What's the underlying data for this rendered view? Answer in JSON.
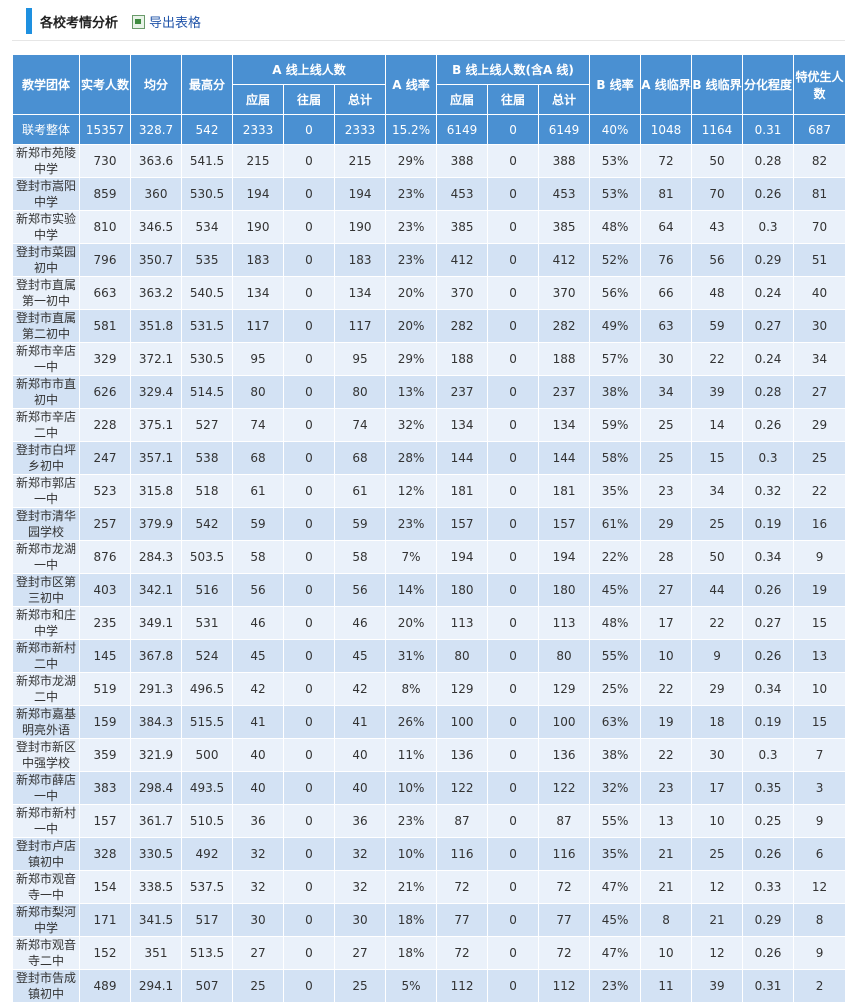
{
  "header": {
    "title": "各校考情分析",
    "export_label": "导出表格"
  },
  "table": {
    "head": {
      "group": "教学团体",
      "sat": "实考人数",
      "avg": "均分",
      "max": "最高分",
      "a_line": "A 线上线人数",
      "a_rate": "A 线率",
      "b_line": "B 线上线人数(含A 线)",
      "b_rate": "B 线率",
      "a_crit": "A 线临界",
      "b_crit": "B 线临界",
      "diff": "分化程度",
      "top": "特优生人数",
      "sub_current": "应届",
      "sub_past": "往届",
      "sub_total": "总计"
    },
    "total_row": [
      "联考整体",
      "15357",
      "328.7",
      "542",
      "2333",
      "0",
      "2333",
      "15.2%",
      "6149",
      "0",
      "6149",
      "40%",
      "1048",
      "1164",
      "0.31",
      "687"
    ],
    "rows": [
      [
        "新郑市苑陵中学",
        "730",
        "363.6",
        "541.5",
        "215",
        "0",
        "215",
        "29%",
        "388",
        "0",
        "388",
        "53%",
        "72",
        "50",
        "0.28",
        "82"
      ],
      [
        "登封市嵩阳中学",
        "859",
        "360",
        "530.5",
        "194",
        "0",
        "194",
        "23%",
        "453",
        "0",
        "453",
        "53%",
        "81",
        "70",
        "0.26",
        "81"
      ],
      [
        "新郑市实验中学",
        "810",
        "346.5",
        "534",
        "190",
        "0",
        "190",
        "23%",
        "385",
        "0",
        "385",
        "48%",
        "64",
        "43",
        "0.3",
        "70"
      ],
      [
        "登封市菜园初中",
        "796",
        "350.7",
        "535",
        "183",
        "0",
        "183",
        "23%",
        "412",
        "0",
        "412",
        "52%",
        "76",
        "56",
        "0.29",
        "51"
      ],
      [
        "登封市直属第一初中",
        "663",
        "363.2",
        "540.5",
        "134",
        "0",
        "134",
        "20%",
        "370",
        "0",
        "370",
        "56%",
        "66",
        "48",
        "0.24",
        "40"
      ],
      [
        "登封市直属第二初中",
        "581",
        "351.8",
        "531.5",
        "117",
        "0",
        "117",
        "20%",
        "282",
        "0",
        "282",
        "49%",
        "63",
        "59",
        "0.27",
        "30"
      ],
      [
        "新郑市辛店一中",
        "329",
        "372.1",
        "530.5",
        "95",
        "0",
        "95",
        "29%",
        "188",
        "0",
        "188",
        "57%",
        "30",
        "22",
        "0.24",
        "34"
      ],
      [
        "新郑市市直初中",
        "626",
        "329.4",
        "514.5",
        "80",
        "0",
        "80",
        "13%",
        "237",
        "0",
        "237",
        "38%",
        "34",
        "39",
        "0.28",
        "27"
      ],
      [
        "新郑市辛店二中",
        "228",
        "375.1",
        "527",
        "74",
        "0",
        "74",
        "32%",
        "134",
        "0",
        "134",
        "59%",
        "25",
        "14",
        "0.26",
        "29"
      ],
      [
        "登封市白坪乡初中",
        "247",
        "357.1",
        "538",
        "68",
        "0",
        "68",
        "28%",
        "144",
        "0",
        "144",
        "58%",
        "25",
        "15",
        "0.3",
        "25"
      ],
      [
        "新郑市郭店一中",
        "523",
        "315.8",
        "518",
        "61",
        "0",
        "61",
        "12%",
        "181",
        "0",
        "181",
        "35%",
        "23",
        "34",
        "0.32",
        "22"
      ],
      [
        "登封市清华园学校",
        "257",
        "379.9",
        "542",
        "59",
        "0",
        "59",
        "23%",
        "157",
        "0",
        "157",
        "61%",
        "29",
        "25",
        "0.19",
        "16"
      ],
      [
        "新郑市龙湖一中",
        "876",
        "284.3",
        "503.5",
        "58",
        "0",
        "58",
        "7%",
        "194",
        "0",
        "194",
        "22%",
        "28",
        "50",
        "0.34",
        "9"
      ],
      [
        "登封市区第三初中",
        "403",
        "342.1",
        "516",
        "56",
        "0",
        "56",
        "14%",
        "180",
        "0",
        "180",
        "45%",
        "27",
        "44",
        "0.26",
        "19"
      ],
      [
        "新郑市和庄中学",
        "235",
        "349.1",
        "531",
        "46",
        "0",
        "46",
        "20%",
        "113",
        "0",
        "113",
        "48%",
        "17",
        "22",
        "0.27",
        "15"
      ],
      [
        "新郑市新村二中",
        "145",
        "367.8",
        "524",
        "45",
        "0",
        "45",
        "31%",
        "80",
        "0",
        "80",
        "55%",
        "10",
        "9",
        "0.26",
        "13"
      ],
      [
        "新郑市龙湖二中",
        "519",
        "291.3",
        "496.5",
        "42",
        "0",
        "42",
        "8%",
        "129",
        "0",
        "129",
        "25%",
        "22",
        "29",
        "0.34",
        "10"
      ],
      [
        "新郑市嘉基明亮外语",
        "159",
        "384.3",
        "515.5",
        "41",
        "0",
        "41",
        "26%",
        "100",
        "0",
        "100",
        "63%",
        "19",
        "18",
        "0.19",
        "15"
      ],
      [
        "登封市新区中强学校",
        "359",
        "321.9",
        "500",
        "40",
        "0",
        "40",
        "11%",
        "136",
        "0",
        "136",
        "38%",
        "22",
        "30",
        "0.3",
        "7"
      ],
      [
        "新郑市薛店一中",
        "383",
        "298.4",
        "493.5",
        "40",
        "0",
        "40",
        "10%",
        "122",
        "0",
        "122",
        "32%",
        "23",
        "17",
        "0.35",
        "3"
      ],
      [
        "新郑市新村一中",
        "157",
        "361.7",
        "510.5",
        "36",
        "0",
        "36",
        "23%",
        "87",
        "0",
        "87",
        "55%",
        "13",
        "10",
        "0.25",
        "9"
      ],
      [
        "登封市卢店镇初中",
        "328",
        "330.5",
        "492",
        "32",
        "0",
        "32",
        "10%",
        "116",
        "0",
        "116",
        "35%",
        "21",
        "25",
        "0.26",
        "6"
      ],
      [
        "新郑市观音寺一中",
        "154",
        "338.5",
        "537.5",
        "32",
        "0",
        "32",
        "21%",
        "72",
        "0",
        "72",
        "47%",
        "21",
        "12",
        "0.33",
        "12"
      ],
      [
        "新郑市梨河中学",
        "171",
        "341.5",
        "517",
        "30",
        "0",
        "30",
        "18%",
        "77",
        "0",
        "77",
        "45%",
        "8",
        "21",
        "0.29",
        "8"
      ],
      [
        "新郑市观音寺二中",
        "152",
        "351",
        "513.5",
        "27",
        "0",
        "27",
        "18%",
        "72",
        "0",
        "72",
        "47%",
        "10",
        "12",
        "0.26",
        "9"
      ],
      [
        "登封市告成镇初中",
        "489",
        "294.1",
        "507",
        "25",
        "0",
        "25",
        "5%",
        "112",
        "0",
        "112",
        "23%",
        "11",
        "39",
        "0.31",
        "2"
      ]
    ]
  },
  "colors": {
    "header_bg": "#4a90d2",
    "row_light": "#eaf1fa",
    "row_dark": "#d3e2f4",
    "accent": "#1e90e0"
  }
}
